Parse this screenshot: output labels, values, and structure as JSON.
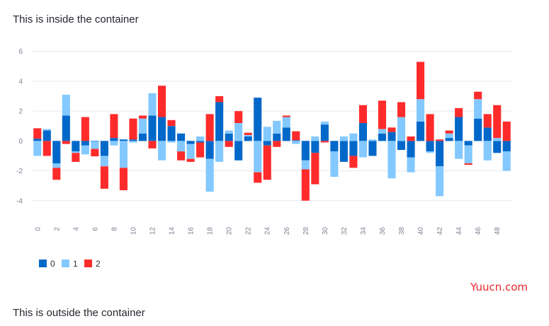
{
  "texts": {
    "inside": "This is inside the container",
    "outside": "This is outside the container",
    "watermark": "Yuucn.com"
  },
  "chart_data": {
    "type": "bar",
    "stacked": true,
    "x": [
      0,
      1,
      2,
      3,
      4,
      5,
      6,
      7,
      8,
      9,
      10,
      11,
      12,
      13,
      14,
      15,
      16,
      17,
      18,
      19,
      20,
      21,
      22,
      23,
      24,
      25,
      26,
      27,
      28,
      29,
      30,
      31,
      32,
      33,
      34,
      35,
      36,
      37,
      38,
      39,
      40,
      41,
      42,
      43,
      44,
      45,
      46,
      47,
      48,
      49
    ],
    "xticks": [
      0,
      2,
      4,
      6,
      8,
      10,
      12,
      14,
      16,
      18,
      20,
      22,
      24,
      26,
      28,
      30,
      32,
      34,
      36,
      38,
      40,
      42,
      44,
      46,
      48
    ],
    "ylim": [
      -5.1,
      6.6
    ],
    "yticks": [
      -4,
      -2,
      0,
      2,
      4,
      6
    ],
    "grid": true,
    "legend_position": "bottom-left",
    "series": [
      {
        "name": "0",
        "color": "#0068c9",
        "values": [
          0.15,
          0.7,
          -1.5,
          1.7,
          -0.7,
          -0.3,
          -0.03,
          -1.0,
          0.2,
          0.1,
          0.1,
          0.5,
          1.7,
          1.6,
          1.0,
          0.5,
          -0.2,
          -0.1,
          -1.2,
          2.6,
          0.5,
          -1.3,
          0.3,
          2.9,
          -0.3,
          0.5,
          0.9,
          0.05,
          -1.3,
          -0.8,
          1.1,
          -0.7,
          -1.4,
          -1.0,
          1.2,
          -1.0,
          0.5,
          0.6,
          -0.6,
          -1.1,
          1.3,
          -0.7,
          -1.7,
          0.2,
          1.6,
          -0.3,
          1.5,
          0.9,
          -0.8,
          -0.7
        ]
      },
      {
        "name": "1",
        "color": "#83c9ff",
        "values": [
          -1.0,
          0.1,
          -0.3,
          1.4,
          -0.1,
          -0.6,
          -0.5,
          -0.7,
          -0.3,
          -1.8,
          -0.1,
          1.0,
          1.5,
          -1.3,
          -0.1,
          -0.7,
          -1.0,
          0.3,
          -2.2,
          -1.4,
          0.2,
          1.2,
          0.1,
          -2.1,
          0.95,
          0.85,
          0.7,
          -0.2,
          -0.6,
          0.3,
          0.2,
          -1.7,
          0.3,
          0.5,
          -1.1,
          0.1,
          0.3,
          -2.5,
          1.6,
          -1.0,
          1.5,
          -0.1,
          -2.0,
          0.3,
          -1.2,
          -1.2,
          1.3,
          -1.3,
          0.2,
          -1.3
        ]
      },
      {
        "name": "2",
        "color": "#ff2b2b",
        "values": [
          0.7,
          -1.0,
          -0.8,
          -0.2,
          -0.6,
          1.6,
          -0.5,
          -1.5,
          1.6,
          -1.5,
          1.4,
          0.2,
          -0.5,
          2.1,
          0.4,
          -0.6,
          -0.2,
          -1.0,
          1.8,
          0.4,
          -0.4,
          0.8,
          0.15,
          -0.7,
          -2.3,
          -0.4,
          0.1,
          0.6,
          -2.1,
          -2.1,
          -0.1,
          0.0,
          0.0,
          -0.8,
          1.2,
          0.0,
          1.9,
          0.3,
          1.0,
          0.3,
          2.5,
          1.8,
          0.1,
          0.2,
          0.6,
          -0.1,
          0.5,
          0.9,
          2.2,
          1.3
        ]
      }
    ]
  }
}
